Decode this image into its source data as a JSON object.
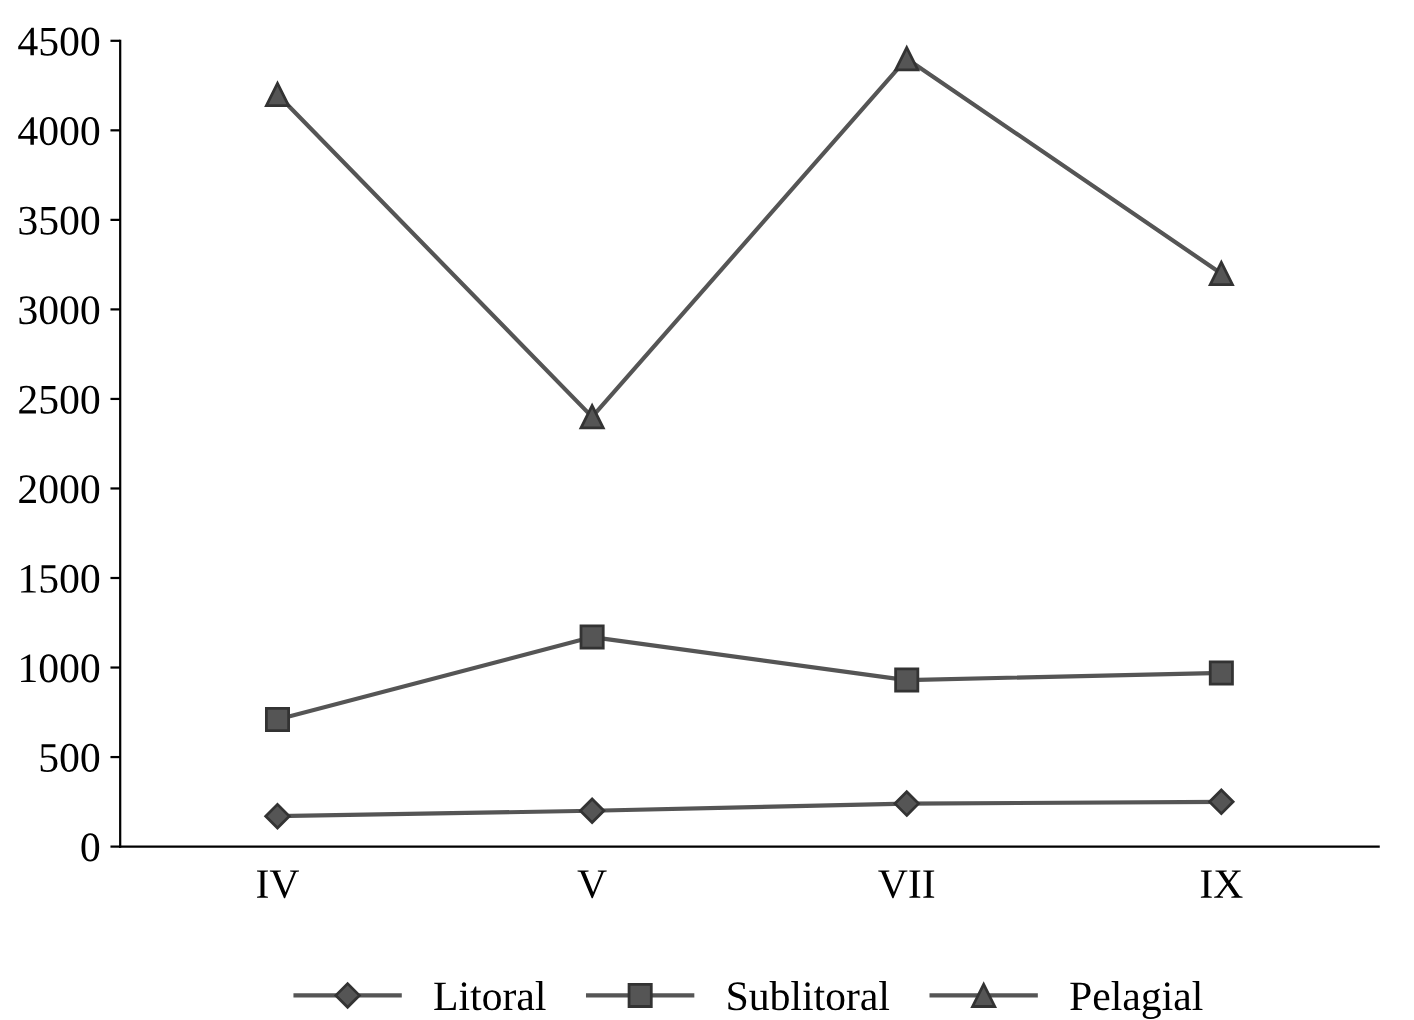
{
  "chart_data": {
    "type": "line",
    "categories": [
      "IV",
      "V",
      "VII",
      "IX"
    ],
    "series": [
      {
        "name": "Litoral",
        "color": "#555555",
        "marker": "diamond",
        "values": [
          170,
          200,
          240,
          250
        ]
      },
      {
        "name": "Sublitoral",
        "color": "#555555",
        "marker": "square",
        "values": [
          710,
          1170,
          930,
          970
        ]
      },
      {
        "name": "Pelagial",
        "color": "#555555",
        "marker": "triangle",
        "values": [
          4200,
          2400,
          4400,
          3200
        ]
      }
    ],
    "ylim": [
      0,
      4500
    ],
    "yticks": [
      0,
      500,
      1000,
      1500,
      2000,
      2500,
      3000,
      3500,
      4000,
      4500
    ],
    "grid": false,
    "legend": "bottom",
    "line_style": "solid"
  }
}
